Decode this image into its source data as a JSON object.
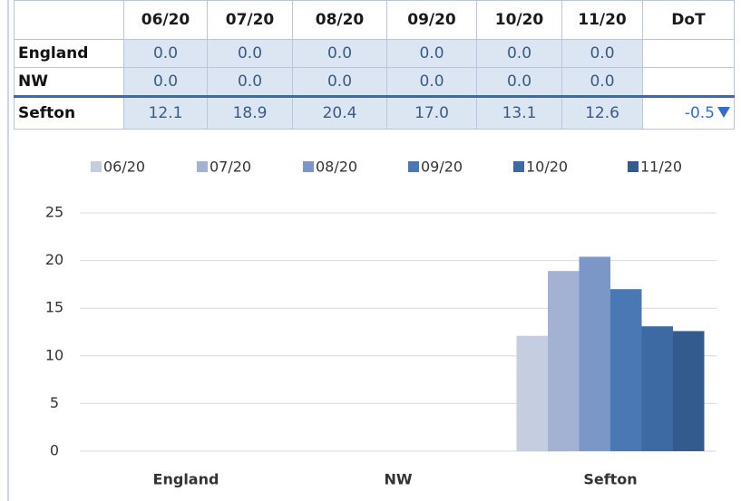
{
  "table": {
    "headers": [
      "06/20",
      "07/20",
      "08/20",
      "09/20",
      "10/20",
      "11/20",
      "DoT"
    ],
    "rows": [
      {
        "label": "England",
        "cells": [
          "0.0",
          "0.0",
          "0.0",
          "0.0",
          "0.0",
          "0.0"
        ]
      },
      {
        "label": "NW",
        "cells": [
          "0.0",
          "0.0",
          "0.0",
          "0.0",
          "0.0",
          "0.0"
        ]
      },
      {
        "label": "Sefton",
        "cells": [
          "12.1",
          "18.9",
          "20.4",
          "17.0",
          "13.1",
          "12.6"
        ],
        "dot": "-0.5"
      }
    ]
  },
  "chart_data": {
    "type": "bar",
    "categories": [
      "England",
      "NW",
      "Sefton"
    ],
    "series": [
      {
        "name": "06/20",
        "color": "#c5cde0",
        "values": [
          0,
          0,
          12.1
        ]
      },
      {
        "name": "07/20",
        "color": "#a3b2d3",
        "values": [
          0,
          0,
          18.9
        ]
      },
      {
        "name": "08/20",
        "color": "#7a97c8",
        "values": [
          0,
          0,
          20.4
        ]
      },
      {
        "name": "09/20",
        "color": "#4a78b5",
        "values": [
          0,
          0,
          17.0
        ]
      },
      {
        "name": "10/20",
        "color": "#3d6aa3",
        "values": [
          0,
          0,
          13.1
        ]
      },
      {
        "name": "11/20",
        "color": "#345a8e",
        "values": [
          0,
          0,
          12.6
        ]
      }
    ],
    "ylim": [
      0,
      25
    ],
    "yticks": [
      0,
      5,
      10,
      15,
      20,
      25
    ],
    "grid": true,
    "legend": "top"
  }
}
